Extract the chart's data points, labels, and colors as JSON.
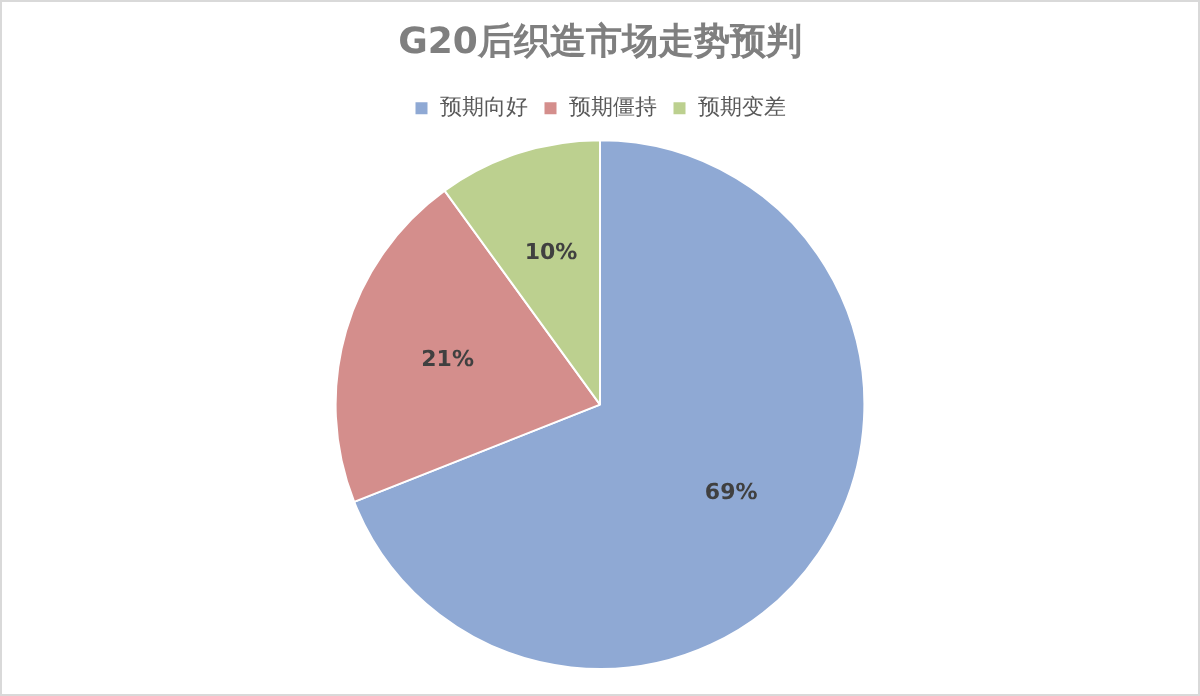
{
  "chart_data": {
    "type": "pie",
    "title": "G20后织造市场走势预判",
    "categories": [
      "预期向好",
      "预期僵持",
      "预期变差"
    ],
    "values": [
      69,
      21,
      10
    ],
    "colors": [
      "#8fa9d4",
      "#d48e8c",
      "#bcd08f"
    ],
    "value_labels": [
      "69%",
      "21%",
      "10%"
    ],
    "legend": "top"
  }
}
